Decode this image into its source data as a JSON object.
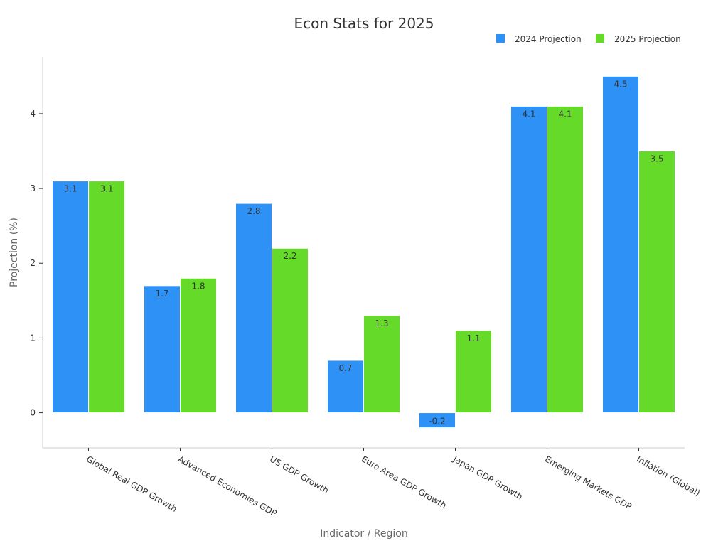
{
  "chart_data": {
    "type": "bar",
    "title": "Econ Stats for 2025",
    "xlabel": "Indicator / Region",
    "ylabel": "Projection (%)",
    "categories": [
      "Global Real GDP Growth",
      "Advanced Economies GDP",
      "US GDP Growth",
      "Euro Area GDP Growth",
      "Japan GDP Growth",
      "Emerging Markets GDP",
      "Inflation (Global)"
    ],
    "series": [
      {
        "name": "2024 Projection",
        "color": "#2e91f5",
        "values": [
          3.1,
          1.7,
          2.8,
          0.7,
          -0.2,
          4.1,
          4.5
        ]
      },
      {
        "name": "2025 Projection",
        "color": "#65da28",
        "values": [
          3.1,
          1.8,
          2.2,
          1.3,
          1.1,
          4.1,
          3.5
        ]
      }
    ],
    "yticks": [
      0,
      1,
      2,
      3,
      4
    ],
    "ylim": [
      -0.47,
      4.76
    ],
    "grid": false,
    "legend_position": "top-right",
    "data_labels": true
  }
}
